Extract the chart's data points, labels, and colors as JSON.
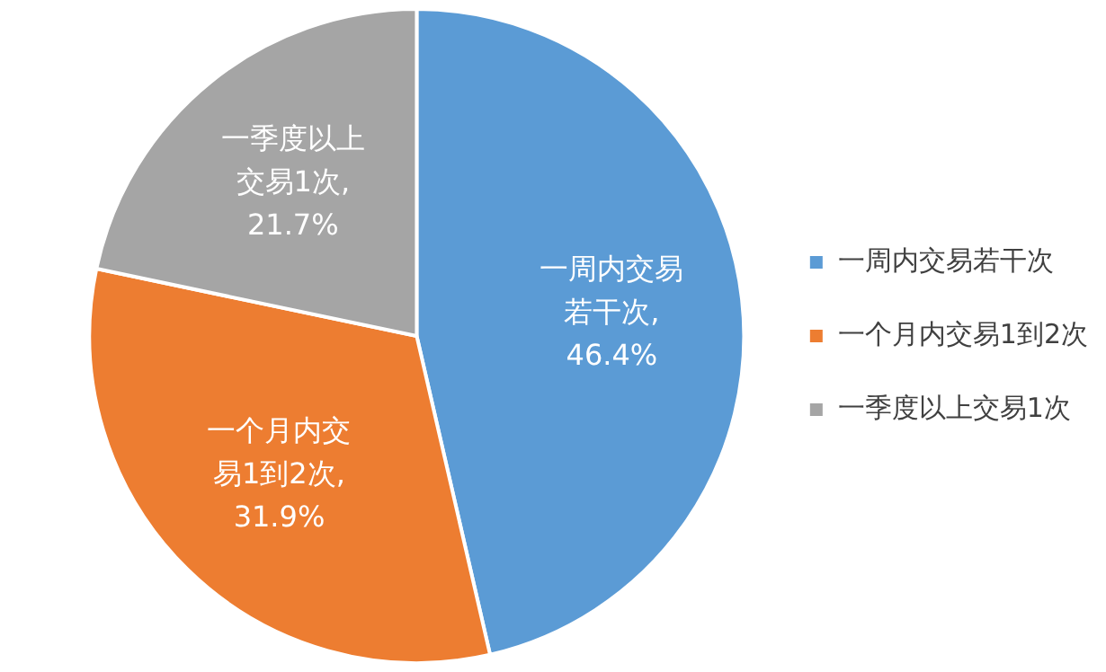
{
  "chart_data": {
    "type": "pie",
    "categories": [
      "一周内交易若干次",
      "一个月内交易1到2次",
      "一季度以上交易1次"
    ],
    "values": [
      46.4,
      31.9,
      21.7
    ],
    "colors": [
      "#5b9bd5",
      "#ed7d31",
      "#a5a5a5"
    ],
    "value_labels": [
      "一周内交易若干次, 46.4%",
      "一个月内交易1到2次, 31.9%",
      "一季度以上交易1次, 21.7%"
    ],
    "legend": "right"
  }
}
